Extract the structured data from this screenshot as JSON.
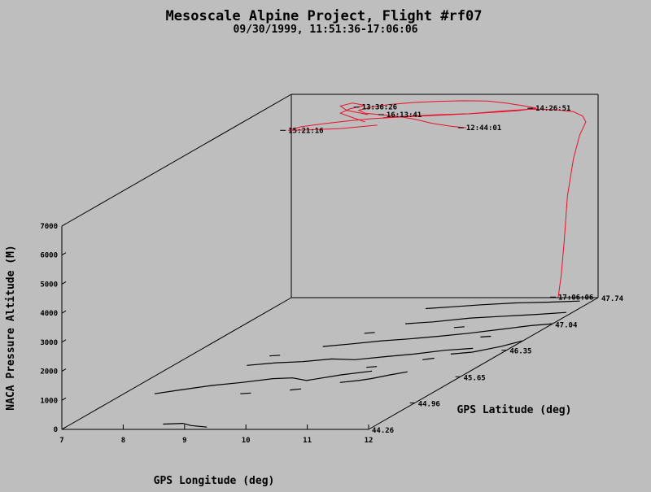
{
  "chart_data": {
    "type": "line",
    "projection": "3d-oblique",
    "title": "Mesoscale Alpine Project, Flight #rf07",
    "subtitle": "09/30/1999, 11:51:36-17:06:06",
    "xlabel": "GPS Longitude (deg)",
    "ylabel": "GPS Latitude (deg)",
    "zlabel": "NACA Pressure Altitude (M)",
    "xlim": [
      7,
      12
    ],
    "ylim": [
      44.26,
      47.74
    ],
    "zlim": [
      0,
      7000
    ],
    "x_ticks": [
      "7",
      "8",
      "9",
      "10",
      "11",
      "12"
    ],
    "y_ticks": [
      "44.26",
      "44.96",
      "45.65",
      "46.35",
      "47.04",
      "47.74"
    ],
    "z_ticks": [
      "0",
      "1000",
      "2000",
      "3000",
      "4000",
      "5000",
      "6000",
      "7000"
    ],
    "colors": {
      "track": "#e8112d",
      "axes": "#000000",
      "coast": "#000000",
      "background": "#bebebe"
    },
    "time_labels": [
      {
        "text": "13:36:26",
        "x": 8.15,
        "y": 47.74,
        "z": 6560
      },
      {
        "text": "14:26:51",
        "x": 10.98,
        "y": 47.74,
        "z": 6520
      },
      {
        "text": "16:13:41",
        "x": 8.55,
        "y": 47.74,
        "z": 6300
      },
      {
        "text": "12:44:01",
        "x": 9.85,
        "y": 47.74,
        "z": 5850
      },
      {
        "text": "15:21:16",
        "x": 6.95,
        "y": 47.74,
        "z": 5760
      },
      {
        "text": "17:06:06",
        "x": 11.35,
        "y": 47.74,
        "z": 20
      }
    ]
  }
}
